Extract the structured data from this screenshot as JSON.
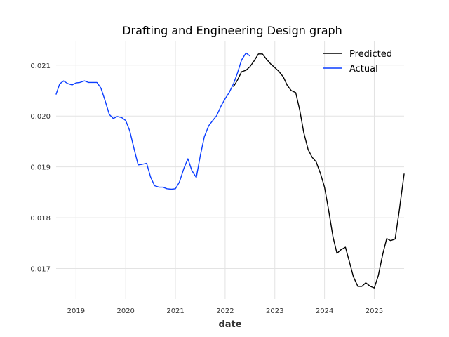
{
  "chart_data": {
    "type": "line",
    "title": "Drafting and Engineering Design graph",
    "xlabel": "date",
    "ylabel": "",
    "xlim": [
      2018.6,
      2025.6
    ],
    "ylim": [
      0.0164,
      0.02148
    ],
    "x_ticks": [
      2019,
      2020,
      2021,
      2022,
      2023,
      2024,
      2025
    ],
    "x_tick_labels": [
      "2019",
      "2020",
      "2021",
      "2022",
      "2023",
      "2024",
      "2025"
    ],
    "y_ticks": [
      0.017,
      0.018,
      0.019,
      0.02,
      0.021
    ],
    "y_tick_labels": [
      "0.017",
      "0.018",
      "0.019",
      "0.020",
      "0.021"
    ],
    "grid": true,
    "legend_position": "top-right",
    "series": [
      {
        "name": "Predicted",
        "color": "#000000",
        "x": [
          2022.17,
          2022.25,
          2022.33,
          2022.42,
          2022.5,
          2022.58,
          2022.67,
          2022.75,
          2022.83,
          2022.92,
          2023.0,
          2023.08,
          2023.17,
          2023.25,
          2023.33,
          2023.42,
          2023.5,
          2023.58,
          2023.67,
          2023.75,
          2023.83,
          2023.92,
          2024.0,
          2024.08,
          2024.17,
          2024.25,
          2024.33,
          2024.42,
          2024.5,
          2024.58,
          2024.67,
          2024.75,
          2024.83,
          2024.92,
          2025.0,
          2025.08,
          2025.17,
          2025.25,
          2025.33,
          2025.42,
          2025.5,
          2025.6
        ],
        "values": [
          0.02058,
          0.02071,
          0.02087,
          0.0209,
          0.02097,
          0.02108,
          0.02122,
          0.02122,
          0.02112,
          0.02102,
          0.02095,
          0.02088,
          0.02077,
          0.0206,
          0.0205,
          0.02046,
          0.02012,
          0.01968,
          0.01934,
          0.01919,
          0.0191,
          0.01886,
          0.0186,
          0.01816,
          0.01762,
          0.0173,
          0.01737,
          0.01742,
          0.01713,
          0.01684,
          0.01665,
          0.01665,
          0.01672,
          0.01665,
          0.01662,
          0.01686,
          0.01728,
          0.01759,
          0.01755,
          0.01758,
          0.01812,
          0.01886
        ]
      },
      {
        "name": "Actual",
        "color": "#0a3dff",
        "x": [
          2018.6,
          2018.67,
          2018.75,
          2018.83,
          2018.92,
          2019.0,
          2019.08,
          2019.17,
          2019.25,
          2019.33,
          2019.42,
          2019.5,
          2019.58,
          2019.67,
          2019.75,
          2019.83,
          2019.92,
          2020.0,
          2020.08,
          2020.17,
          2020.25,
          2020.33,
          2020.42,
          2020.5,
          2020.58,
          2020.67,
          2020.75,
          2020.83,
          2020.92,
          2021.0,
          2021.08,
          2021.17,
          2021.25,
          2021.33,
          2021.42,
          2021.5,
          2021.58,
          2021.67,
          2021.75,
          2021.83,
          2021.92,
          2022.0,
          2022.08,
          2022.17,
          2022.25,
          2022.33,
          2022.42,
          2022.5
        ],
        "values": [
          0.02043,
          0.02063,
          0.02069,
          0.02064,
          0.02061,
          0.02065,
          0.02066,
          0.02069,
          0.02066,
          0.02066,
          0.02066,
          0.02055,
          0.02032,
          0.02003,
          0.01995,
          0.01999,
          0.01997,
          0.01991,
          0.01971,
          0.01935,
          0.01904,
          0.01905,
          0.01907,
          0.0188,
          0.01863,
          0.0186,
          0.0186,
          0.01857,
          0.01856,
          0.01857,
          0.0187,
          0.01897,
          0.01916,
          0.01893,
          0.01879,
          0.01922,
          0.01959,
          0.01981,
          0.01991,
          0.02001,
          0.0202,
          0.02034,
          0.02046,
          0.02064,
          0.02085,
          0.0211,
          0.02124,
          0.02118
        ]
      }
    ]
  }
}
